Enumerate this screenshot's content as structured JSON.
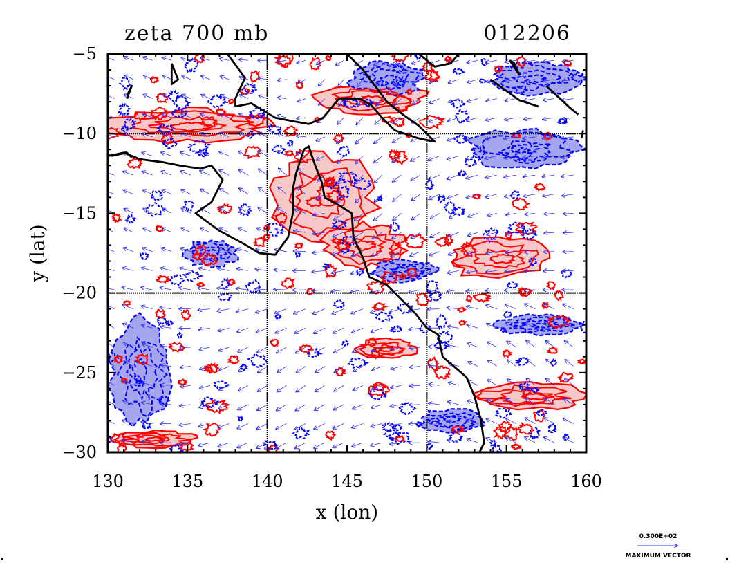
{
  "chart_data": {
    "type": "heatmap",
    "title": "zeta 700 mb",
    "date_label": "012206",
    "xlabel": "x (lon)",
    "ylabel": "y (lat)",
    "xlim": [
      130,
      160
    ],
    "ylim": [
      -30,
      -5
    ],
    "xticks": [
      130,
      135,
      140,
      145,
      150,
      155,
      160
    ],
    "yticks": [
      -5,
      -10,
      -15,
      -20,
      -25,
      -30
    ],
    "gridlines_x": [
      140,
      150
    ],
    "gridlines_y": [
      -10,
      -20
    ],
    "vector_legend": {
      "value": "0.300E+02",
      "label": "MAXIMUM VECTOR"
    },
    "colors": {
      "positive_contour": "#ff0000",
      "positive_fill": "#f7c8c8",
      "negative_contour": "#0000ff",
      "negative_fill": "#a6a6ee",
      "wind_vectors": "#3333ee",
      "coastline": "#000000"
    },
    "positive_regions": [
      {
        "lon": 143.5,
        "lat": -14.0,
        "rlon": 3.2,
        "rlat": 2.6
      },
      {
        "lon": 146.0,
        "lat": -17.0,
        "rlon": 2.5,
        "rlat": 1.3
      },
      {
        "lon": 154.5,
        "lat": -17.8,
        "rlon": 3.2,
        "rlat": 1.2
      },
      {
        "lon": 135.0,
        "lat": -9.5,
        "rlon": 4.8,
        "rlat": 1.0
      },
      {
        "lon": 146.5,
        "lat": -7.8,
        "rlon": 3.5,
        "rlat": 0.9
      },
      {
        "lon": 156.5,
        "lat": -26.5,
        "rlon": 3.5,
        "rlat": 0.8
      },
      {
        "lon": 133.0,
        "lat": -29.2,
        "rlon": 2.5,
        "rlat": 0.5
      },
      {
        "lon": 147.5,
        "lat": -23.5,
        "rlon": 1.8,
        "rlat": 0.6
      }
    ],
    "negative_regions": [
      {
        "lon": 156.0,
        "lat": -11.0,
        "rlon": 3.5,
        "rlat": 1.2
      },
      {
        "lon": 157.0,
        "lat": -6.5,
        "rlon": 2.8,
        "rlat": 1.0
      },
      {
        "lon": 132.0,
        "lat": -25.0,
        "rlon": 1.8,
        "rlat": 3.2
      },
      {
        "lon": 147.5,
        "lat": -6.5,
        "rlon": 2.2,
        "rlat": 1.0
      },
      {
        "lon": 148.5,
        "lat": -18.6,
        "rlon": 2.0,
        "rlat": 0.7
      },
      {
        "lon": 136.5,
        "lat": -17.5,
        "rlon": 1.6,
        "rlat": 0.8
      },
      {
        "lon": 157.0,
        "lat": -22.0,
        "rlon": 2.5,
        "rlat": 0.6
      },
      {
        "lon": 151.5,
        "lat": -28.0,
        "rlon": 2.0,
        "rlat": 0.7
      }
    ],
    "coastlines": [
      [
        [
          130.0,
          -11.4
        ],
        [
          131.0,
          -11.2
        ],
        [
          132.0,
          -11.6
        ],
        [
          133.5,
          -11.8
        ],
        [
          134.5,
          -12.0
        ],
        [
          135.8,
          -12.2
        ],
        [
          136.5,
          -12.0
        ],
        [
          137.2,
          -12.9
        ],
        [
          136.5,
          -14.3
        ],
        [
          135.5,
          -15.0
        ],
        [
          137.0,
          -16.1
        ],
        [
          138.5,
          -16.9
        ],
        [
          139.5,
          -17.5
        ],
        [
          140.5,
          -17.6
        ],
        [
          141.3,
          -16.5
        ],
        [
          141.6,
          -15.0
        ],
        [
          141.6,
          -13.5
        ],
        [
          141.8,
          -12.5
        ],
        [
          142.3,
          -11.0
        ],
        [
          142.6,
          -10.8
        ],
        [
          143.0,
          -12.0
        ],
        [
          143.4,
          -13.0
        ],
        [
          143.6,
          -14.0
        ],
        [
          144.5,
          -14.5
        ],
        [
          145.3,
          -15.0
        ],
        [
          145.4,
          -16.5
        ],
        [
          146.0,
          -17.8
        ],
        [
          146.4,
          -19.0
        ],
        [
          147.5,
          -19.5
        ],
        [
          148.5,
          -20.5
        ],
        [
          149.3,
          -21.3
        ],
        [
          150.0,
          -22.2
        ],
        [
          150.7,
          -22.6
        ],
        [
          151.0,
          -24.0
        ],
        [
          152.5,
          -25.3
        ],
        [
          153.0,
          -26.5
        ],
        [
          153.4,
          -28.0
        ],
        [
          153.6,
          -29.4
        ],
        [
          153.3,
          -30.0
        ]
      ],
      [
        [
          138.0,
          -8.3
        ],
        [
          139.0,
          -8.1
        ],
        [
          140.5,
          -9.0
        ],
        [
          141.5,
          -9.2
        ],
        [
          142.6,
          -9.4
        ],
        [
          143.5,
          -9.0
        ],
        [
          144.5,
          -7.8
        ],
        [
          145.8,
          -7.8
        ],
        [
          146.5,
          -8.2
        ],
        [
          147.2,
          -9.0
        ],
        [
          148.0,
          -9.8
        ],
        [
          149.5,
          -10.3
        ],
        [
          150.5,
          -10.5
        ],
        [
          149.5,
          -9.5
        ],
        [
          148.5,
          -8.8
        ],
        [
          147.5,
          -8.0
        ],
        [
          146.0,
          -6.0
        ],
        [
          145.0,
          -5.0
        ]
      ],
      [
        [
          137.5,
          -5.0
        ],
        [
          138.6,
          -6.5
        ],
        [
          138.0,
          -7.8
        ],
        [
          138.0,
          -8.3
        ]
      ],
      [
        [
          149.5,
          -5.0
        ],
        [
          150.5,
          -5.8
        ],
        [
          151.5,
          -5.6
        ],
        [
          152.0,
          -5.0
        ]
      ],
      [
        [
          155.2,
          -5.4
        ],
        [
          155.8,
          -6.3
        ],
        [
          155.5,
          -5.6
        ],
        [
          155.2,
          -5.4
        ]
      ],
      [
        [
          154.0,
          -6.6
        ],
        [
          155.8,
          -7.9
        ],
        [
          157.0,
          -8.3
        ]
      ],
      [
        [
          157.5,
          -7.0
        ],
        [
          159.0,
          -8.4
        ],
        [
          159.5,
          -8.8
        ]
      ],
      [
        [
          134.0,
          -5.6
        ],
        [
          134.4,
          -6.6
        ],
        [
          134.0,
          -6.9
        ],
        [
          134.0,
          -5.6
        ]
      ],
      [
        [
          131.2,
          -7.8
        ],
        [
          131.5,
          -7.0
        ],
        [
          131.3,
          -7.4
        ],
        [
          131.2,
          -7.8
        ]
      ],
      [
        [
          130.2,
          -11.4
        ],
        [
          131.2,
          -11.2
        ],
        [
          131.5,
          -11.5
        ]
      ],
      [
        [
          159.8,
          -9.8
        ],
        [
          159.7,
          -10.3
        ]
      ]
    ],
    "wind_field": {
      "vortex_center": {
        "lon": 143.5,
        "lat": -14.0
      },
      "grid_step_deg": 1.2,
      "max_vector": 30
    }
  }
}
